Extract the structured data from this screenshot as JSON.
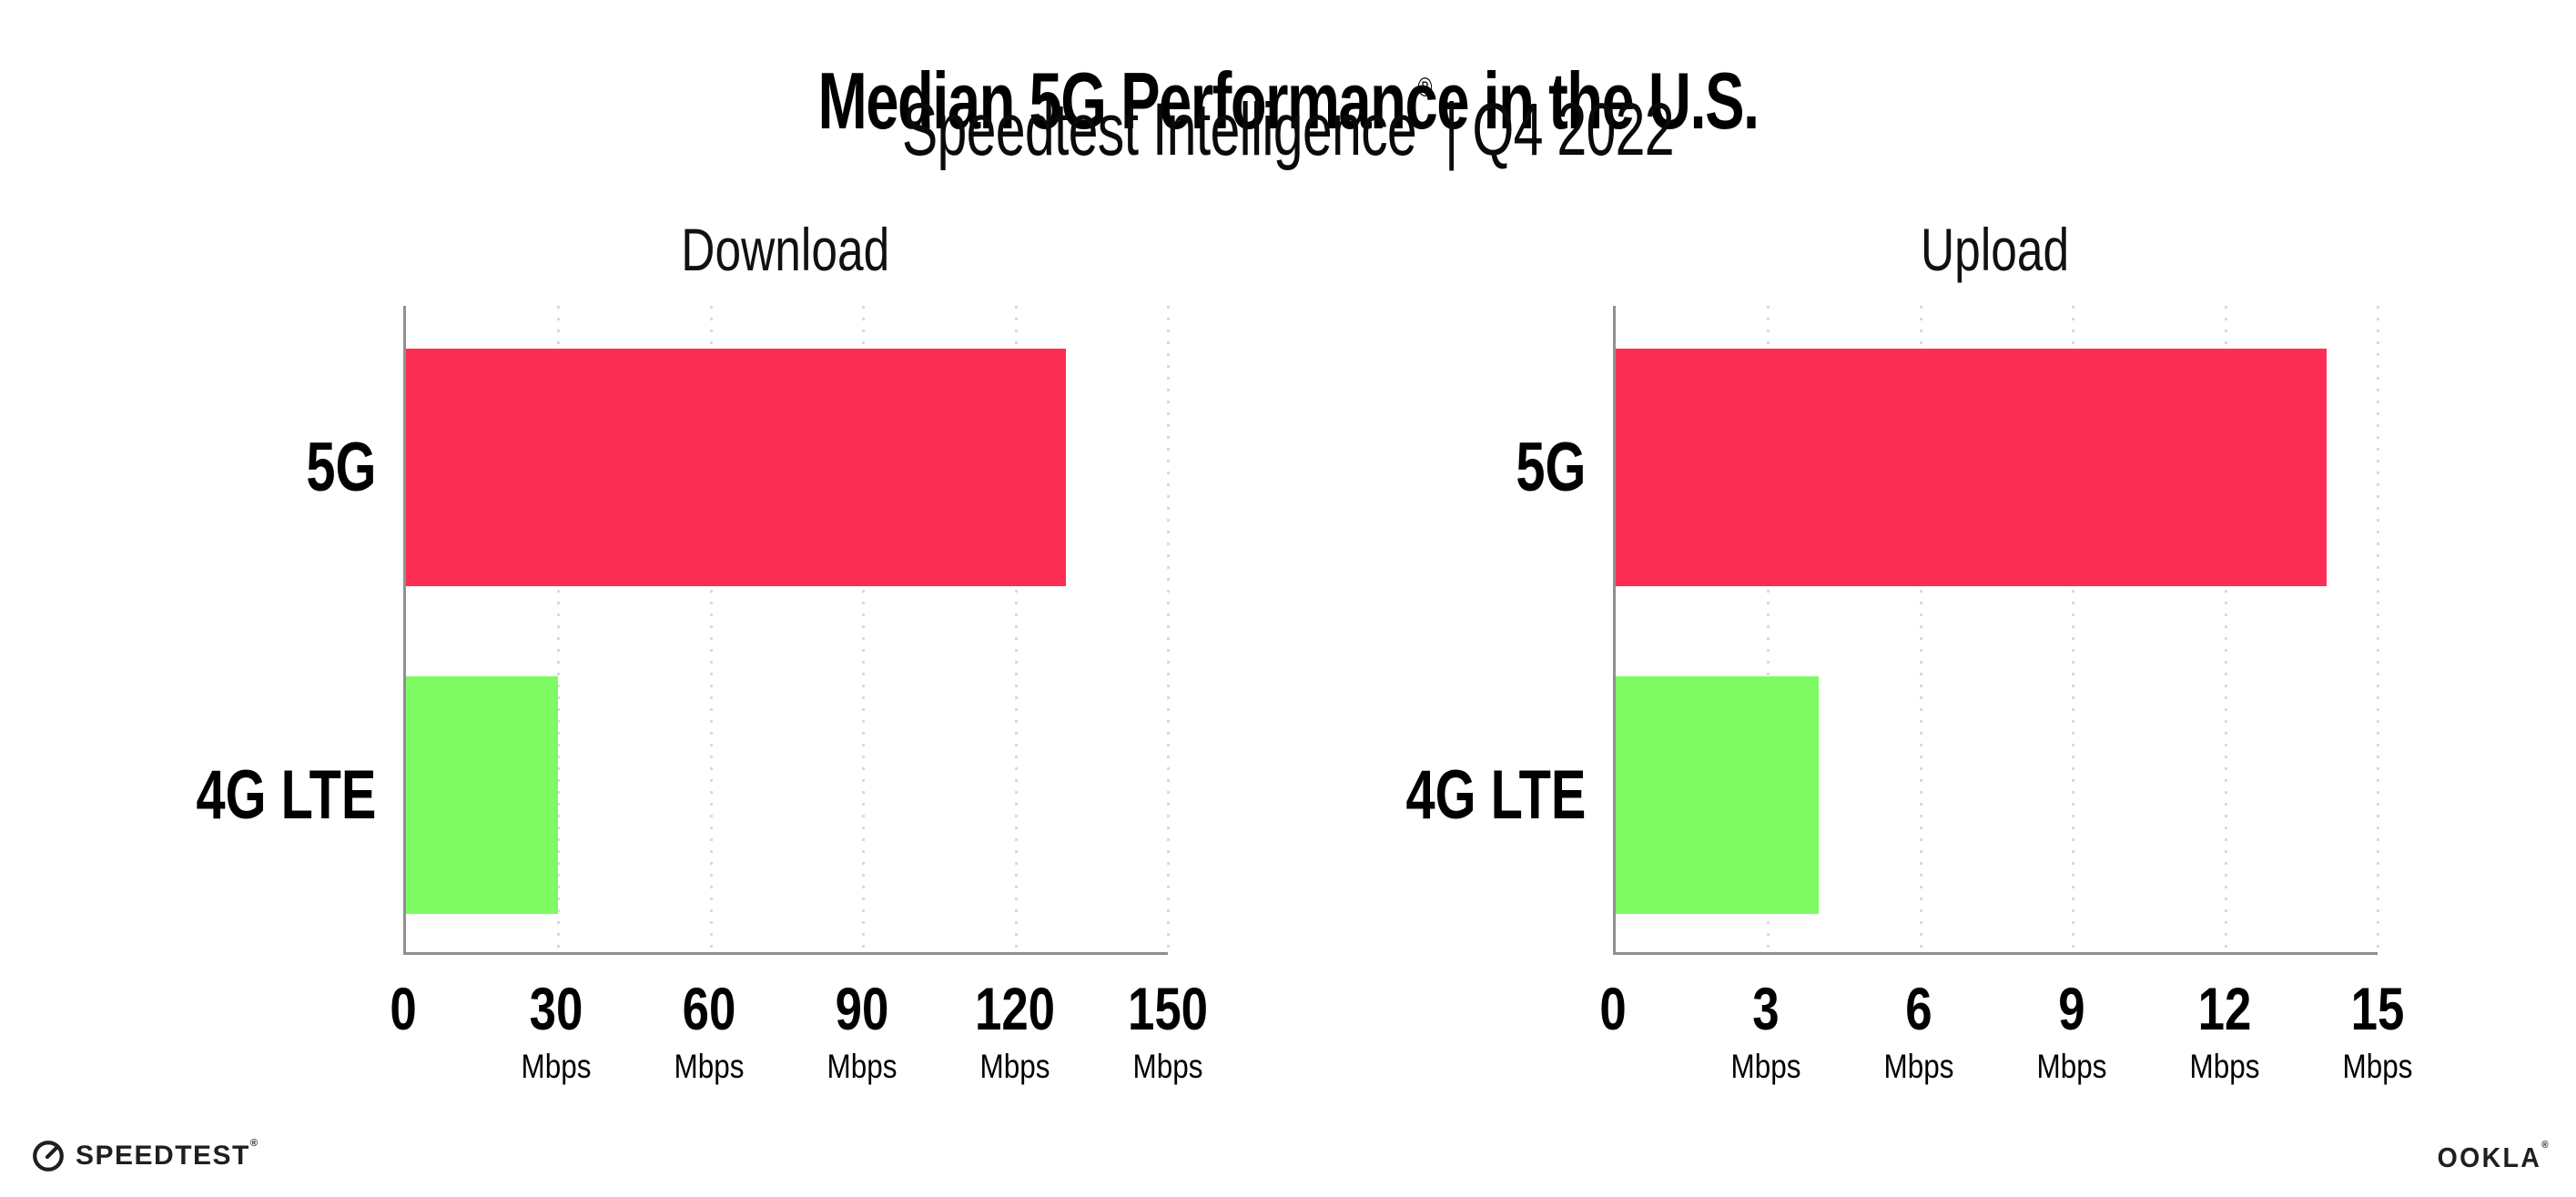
{
  "page_title": "Median 5G Performance in the U.S.",
  "subtitle": {
    "brand": "Speedtest Intelligence",
    "registered_mark": "®",
    "rest": "| Q4 2022"
  },
  "colors": {
    "bar_5g": "#FD2E55",
    "bar_4g_lte": "#7EFA63",
    "axis_line": "#8F8F94",
    "gridline": "#D9D9DE",
    "text": "#000000",
    "background": "#FFFFFF",
    "logo": "#1F1F1F"
  },
  "chart_data": [
    {
      "type": "bar",
      "orientation": "horizontal",
      "title": "Download",
      "categories": [
        "5G",
        "4G LTE"
      ],
      "values": [
        130,
        30
      ],
      "unit": "Mbps",
      "xlim": [
        0,
        150
      ],
      "xticks": [
        0,
        30,
        60,
        90,
        120,
        150
      ],
      "bar_colors": [
        "#FD2E55",
        "#7EFA63"
      ],
      "grid": "dotted-vertical-gridlines",
      "legend": "none"
    },
    {
      "type": "bar",
      "orientation": "horizontal",
      "title": "Upload",
      "categories": [
        "5G",
        "4G LTE"
      ],
      "values": [
        14,
        4
      ],
      "unit": "Mbps",
      "xlim": [
        0,
        15
      ],
      "xticks": [
        0,
        3,
        6,
        9,
        12,
        15
      ],
      "bar_colors": [
        "#FD2E55",
        "#7EFA63"
      ],
      "grid": "dotted-vertical-gridlines",
      "legend": "none"
    }
  ],
  "footer": {
    "speedtest_icon": "gauge-icon",
    "speedtest_label": "SPEEDTEST",
    "speedtest_mark": "®",
    "ookla_label": "OOKLA",
    "ookla_mark": "®"
  }
}
